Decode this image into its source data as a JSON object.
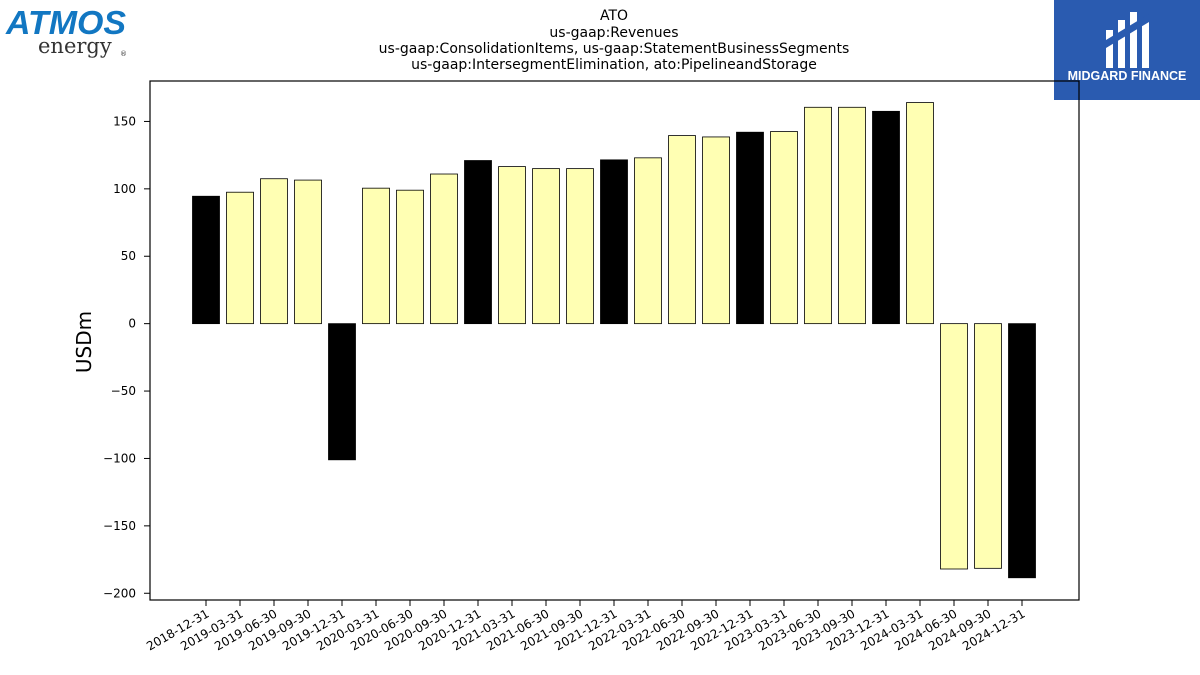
{
  "logos": {
    "left": {
      "line1": "ATMOS",
      "line2": "energy",
      "mark": "®"
    },
    "right": {
      "text": "MIDGARD FINANCE"
    }
  },
  "colors": {
    "bar_pos": "#ffffb3",
    "bar_highlight": "#000000",
    "edge": "#000000",
    "atmos_blue": "#1277c2",
    "midgard_bg": "#2a5bb0"
  },
  "chart_data": {
    "type": "bar",
    "title": [
      "ATO",
      "us-gaap:Revenues",
      "us-gaap:ConsolidationItems, us-gaap:StatementBusinessSegments",
      "us-gaap:IntersegmentElimination, ato:PipelineandStorage"
    ],
    "xlabel": "",
    "ylabel": "USDm",
    "ylim": [
      -205,
      180
    ],
    "yticks": [
      150,
      100,
      50,
      0,
      -50,
      -100,
      -150,
      -200
    ],
    "ytick_labels": [
      "150",
      "100",
      "50",
      "0",
      "−50",
      "−100",
      "−150",
      "−200"
    ],
    "grid": false,
    "categories": [
      "2018-12-31",
      "2019-03-31",
      "2019-06-30",
      "2019-09-30",
      "2019-12-31",
      "2020-03-31",
      "2020-06-30",
      "2020-09-30",
      "2020-12-31",
      "2021-03-31",
      "2021-06-30",
      "2021-09-30",
      "2021-12-31",
      "2022-03-31",
      "2022-06-30",
      "2022-09-30",
      "2022-12-31",
      "2023-03-31",
      "2023-06-30",
      "2023-09-30",
      "2023-12-31",
      "2024-03-31",
      "2024-06-30",
      "2024-09-30",
      "2024-12-31"
    ],
    "values": [
      94.5,
      97.5,
      107.5,
      106.5,
      -101,
      100.5,
      99,
      111,
      121,
      116.5,
      115,
      115,
      121.5,
      123,
      139.5,
      138.5,
      142,
      142.5,
      160.5,
      160.5,
      157.5,
      164,
      -182,
      -181.5,
      -188.5
    ],
    "highlight": [
      true,
      false,
      false,
      false,
      true,
      false,
      false,
      false,
      true,
      false,
      false,
      false,
      true,
      false,
      false,
      false,
      true,
      false,
      false,
      false,
      true,
      false,
      false,
      false,
      true
    ]
  }
}
